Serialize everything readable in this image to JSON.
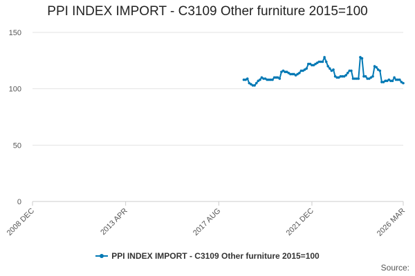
{
  "chart_data": {
    "type": "line",
    "title": "PPI INDEX IMPORT - C3109 Other furniture 2015=100",
    "xlabel": "",
    "ylabel": "",
    "ylim": [
      0,
      150
    ],
    "yticks": [
      0,
      50,
      100,
      150
    ],
    "xlim": [
      "2008-12",
      "2026-03"
    ],
    "xticks": [
      "2008 DEC",
      "2013 APR",
      "2017 AUG",
      "2021 DEC",
      "2026 MAR"
    ],
    "grid": true,
    "legend": "bottom",
    "colors": {
      "series": "#0078b4"
    },
    "series": [
      {
        "name": "PPI INDEX IMPORT - C3109 Other furniture 2015=100",
        "x": [
          "2018-10",
          "2018-11",
          "2018-12",
          "2019-01",
          "2019-02",
          "2019-03",
          "2019-04",
          "2019-05",
          "2019-06",
          "2019-07",
          "2019-08",
          "2019-09",
          "2019-10",
          "2019-11",
          "2019-12",
          "2020-01",
          "2020-02",
          "2020-03",
          "2020-04",
          "2020-05",
          "2020-06",
          "2020-07",
          "2020-08",
          "2020-09",
          "2020-10",
          "2020-11",
          "2020-12",
          "2021-01",
          "2021-02",
          "2021-03",
          "2021-04",
          "2021-05",
          "2021-06",
          "2021-07",
          "2021-08",
          "2021-09",
          "2021-10",
          "2021-11",
          "2021-12",
          "2022-01",
          "2022-02",
          "2022-03",
          "2022-04",
          "2022-05",
          "2022-06",
          "2022-07",
          "2022-08",
          "2022-09",
          "2022-10",
          "2022-11",
          "2022-12",
          "2023-01",
          "2023-02",
          "2023-03",
          "2023-04",
          "2023-05",
          "2023-06",
          "2023-07",
          "2023-08",
          "2023-09",
          "2023-10",
          "2023-11",
          "2023-12",
          "2024-01",
          "2024-02",
          "2024-03",
          "2024-04",
          "2024-05",
          "2024-06",
          "2024-07",
          "2024-08",
          "2024-09",
          "2024-10",
          "2024-11",
          "2024-12",
          "2025-01",
          "2025-02",
          "2025-03",
          "2025-04",
          "2025-05",
          "2025-06",
          "2025-07",
          "2025-08",
          "2025-09",
          "2025-10",
          "2025-11",
          "2025-12",
          "2026-01",
          "2026-02",
          "2026-03"
        ],
        "values": [
          108,
          108,
          109,
          105,
          104,
          103,
          103,
          105,
          107,
          108,
          110,
          109,
          109,
          108,
          108,
          108,
          108,
          110,
          110,
          110,
          109,
          115,
          116,
          115,
          115,
          114,
          113,
          113,
          113,
          112,
          113,
          114,
          116,
          116,
          117,
          118,
          122,
          122,
          121,
          121,
          122,
          123,
          124,
          124,
          124,
          128,
          124,
          120,
          118,
          116,
          117,
          111,
          110,
          110,
          111,
          111,
          111,
          112,
          114,
          116,
          116,
          109,
          109,
          109,
          109,
          128,
          127,
          111,
          111,
          109,
          109,
          110,
          111,
          120,
          119,
          117,
          116,
          106,
          106,
          107,
          107,
          108,
          107,
          107,
          110,
          108,
          108,
          108,
          106,
          105
        ]
      }
    ]
  },
  "legend": {
    "label": "PPI INDEX IMPORT - C3109 Other furniture 2015=100"
  },
  "source": {
    "label": "Source:"
  }
}
